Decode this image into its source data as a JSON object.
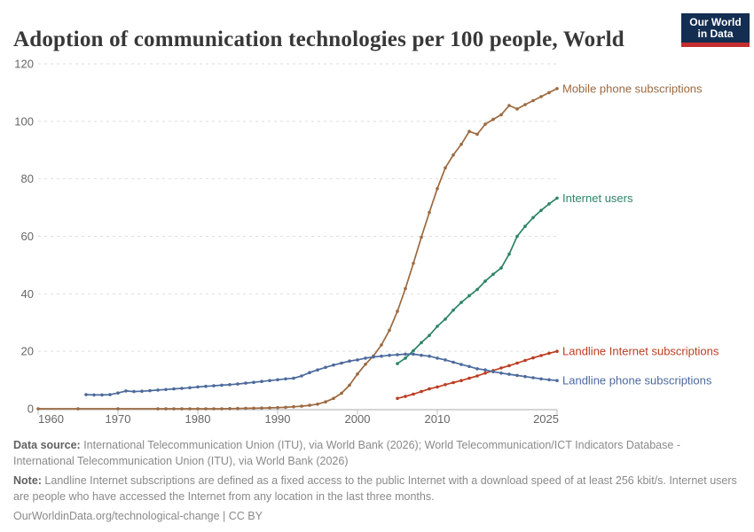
{
  "header": {
    "title": "Adoption of communication technologies per 100 people, World",
    "logo": {
      "line1": "Our World",
      "line2": "in Data"
    }
  },
  "footer": {
    "data_source_label": "Data source:",
    "data_source_text": " International Telecommunication Union (ITU), via World Bank (2026); World Telecommunication/ICT Indicators Database - International Telecommunication Union (ITU), via World Bank (2026)",
    "note_label": "Note:",
    "note_text": " Landline Internet subscriptions are defined as a fixed access to the public Internet with a download speed of at least 256 kbit/s. Internet users are people who have accessed the Internet from any location in the last three months.",
    "citation": "OurWorldinData.org/technological-change | CC BY"
  },
  "colors": {
    "mobile": "#9C6940",
    "internet": "#2C8465",
    "landline_internet": "#BC3D22",
    "landline_phone": "#4C6A9C",
    "grid": "#DEDEDE",
    "axis_line": "#C7C7C7",
    "axis_text": "#666666",
    "logo_bg": "#132E51",
    "logo_bar": "#C62D2D"
  },
  "chart_data": {
    "type": "line",
    "title": "Adoption of communication technologies per 100 people, World",
    "xlabel": "",
    "ylabel": "",
    "x_range": [
      1960,
      2025
    ],
    "y_range": [
      0,
      120
    ],
    "x_ticks": [
      1960,
      1970,
      1980,
      1990,
      2000,
      2010,
      2025
    ],
    "y_ticks": [
      0,
      20,
      40,
      60,
      80,
      100,
      120
    ],
    "grid": "dashed-horizontal",
    "legend_position": "right-of-line-ends",
    "series": [
      {
        "name": "Mobile phone subscriptions",
        "color": "#9C6940",
        "points": [
          [
            1960,
            0
          ],
          [
            1965,
            0
          ],
          [
            1970,
            0
          ],
          [
            1975,
            0
          ],
          [
            1976,
            0
          ],
          [
            1977,
            0
          ],
          [
            1978,
            0
          ],
          [
            1979,
            0
          ],
          [
            1980,
            0
          ],
          [
            1981,
            0
          ],
          [
            1982,
            0
          ],
          [
            1983,
            0
          ],
          [
            1984,
            0.05
          ],
          [
            1985,
            0.1
          ],
          [
            1986,
            0.15
          ],
          [
            1987,
            0.2
          ],
          [
            1988,
            0.25
          ],
          [
            1989,
            0.3
          ],
          [
            1990,
            0.4
          ],
          [
            1991,
            0.5
          ],
          [
            1992,
            0.7
          ],
          [
            1993,
            0.9
          ],
          [
            1994,
            1.2
          ],
          [
            1995,
            1.6
          ],
          [
            1996,
            2.4
          ],
          [
            1997,
            3.6
          ],
          [
            1998,
            5.4
          ],
          [
            1999,
            8.2
          ],
          [
            2000,
            12.1
          ],
          [
            2001,
            15.5
          ],
          [
            2002,
            18.4
          ],
          [
            2003,
            22.2
          ],
          [
            2004,
            27.3
          ],
          [
            2005,
            33.9
          ],
          [
            2006,
            41.8
          ],
          [
            2007,
            50.6
          ],
          [
            2008,
            59.7
          ],
          [
            2009,
            68.3
          ],
          [
            2010,
            76.6
          ],
          [
            2011,
            83.8
          ],
          [
            2012,
            88.3
          ],
          [
            2013,
            92.0
          ],
          [
            2014,
            96.5
          ],
          [
            2015,
            95.5
          ],
          [
            2016,
            99.0
          ],
          [
            2017,
            100.7
          ],
          [
            2018,
            102.3
          ],
          [
            2019,
            105.5
          ],
          [
            2020,
            104.3
          ],
          [
            2021,
            105.8
          ],
          [
            2022,
            107.2
          ],
          [
            2023,
            108.6
          ],
          [
            2024,
            110.0
          ],
          [
            2025,
            111.4
          ]
        ]
      },
      {
        "name": "Internet users",
        "color": "#2C8465",
        "points": [
          [
            2005,
            15.7
          ],
          [
            2006,
            17.6
          ],
          [
            2007,
            20.2
          ],
          [
            2008,
            23.0
          ],
          [
            2009,
            25.5
          ],
          [
            2010,
            28.7
          ],
          [
            2011,
            31.2
          ],
          [
            2012,
            34.3
          ],
          [
            2013,
            37.0
          ],
          [
            2014,
            39.3
          ],
          [
            2015,
            41.5
          ],
          [
            2016,
            44.4
          ],
          [
            2017,
            46.8
          ],
          [
            2018,
            49.0
          ],
          [
            2019,
            53.8
          ],
          [
            2020,
            60.0
          ],
          [
            2021,
            63.5
          ],
          [
            2022,
            66.5
          ],
          [
            2023,
            69.0
          ],
          [
            2024,
            71.3
          ],
          [
            2025,
            73.3
          ]
        ]
      },
      {
        "name": "Landline Internet subscriptions",
        "color": "#BC3D22",
        "points": [
          [
            2005,
            3.6
          ],
          [
            2006,
            4.3
          ],
          [
            2007,
            5.1
          ],
          [
            2008,
            6.0
          ],
          [
            2009,
            6.9
          ],
          [
            2010,
            7.6
          ],
          [
            2011,
            8.4
          ],
          [
            2012,
            9.1
          ],
          [
            2013,
            9.8
          ],
          [
            2014,
            10.6
          ],
          [
            2015,
            11.4
          ],
          [
            2016,
            12.4
          ],
          [
            2017,
            13.3
          ],
          [
            2018,
            14.2
          ],
          [
            2019,
            15.0
          ],
          [
            2020,
            15.9
          ],
          [
            2021,
            16.8
          ],
          [
            2022,
            17.7
          ],
          [
            2023,
            18.5
          ],
          [
            2024,
            19.3
          ],
          [
            2025,
            20.0
          ]
        ]
      },
      {
        "name": "Landline phone subscriptions",
        "color": "#4C6A9C",
        "points": [
          [
            1966,
            4.9
          ],
          [
            1967,
            4.8
          ],
          [
            1968,
            4.8
          ],
          [
            1969,
            4.9
          ],
          [
            1970,
            5.5
          ],
          [
            1971,
            6.2
          ],
          [
            1972,
            6.0
          ],
          [
            1973,
            6.1
          ],
          [
            1974,
            6.3
          ],
          [
            1975,
            6.5
          ],
          [
            1976,
            6.7
          ],
          [
            1977,
            6.9
          ],
          [
            1978,
            7.1
          ],
          [
            1979,
            7.3
          ],
          [
            1980,
            7.6
          ],
          [
            1981,
            7.8
          ],
          [
            1982,
            8.0
          ],
          [
            1983,
            8.2
          ],
          [
            1984,
            8.4
          ],
          [
            1985,
            8.6
          ],
          [
            1986,
            8.9
          ],
          [
            1987,
            9.2
          ],
          [
            1988,
            9.5
          ],
          [
            1989,
            9.8
          ],
          [
            1990,
            10.1
          ],
          [
            1991,
            10.4
          ],
          [
            1992,
            10.6
          ],
          [
            1993,
            11.4
          ],
          [
            1994,
            12.6
          ],
          [
            1995,
            13.5
          ],
          [
            1996,
            14.4
          ],
          [
            1997,
            15.2
          ],
          [
            1998,
            15.9
          ],
          [
            1999,
            16.6
          ],
          [
            2000,
            17.0
          ],
          [
            2001,
            17.6
          ],
          [
            2002,
            18.0
          ],
          [
            2003,
            18.3
          ],
          [
            2004,
            18.6
          ],
          [
            2005,
            18.8
          ],
          [
            2006,
            19.0
          ],
          [
            2007,
            19.0
          ],
          [
            2008,
            18.6
          ],
          [
            2009,
            18.3
          ],
          [
            2010,
            17.6
          ],
          [
            2011,
            17.0
          ],
          [
            2012,
            16.2
          ],
          [
            2013,
            15.4
          ],
          [
            2014,
            14.7
          ],
          [
            2015,
            13.9
          ],
          [
            2016,
            13.5
          ],
          [
            2017,
            12.9
          ],
          [
            2018,
            12.4
          ],
          [
            2019,
            12.0
          ],
          [
            2020,
            11.6
          ],
          [
            2021,
            11.2
          ],
          [
            2022,
            10.8
          ],
          [
            2023,
            10.4
          ],
          [
            2024,
            10.1
          ],
          [
            2025,
            9.8
          ]
        ]
      }
    ]
  }
}
